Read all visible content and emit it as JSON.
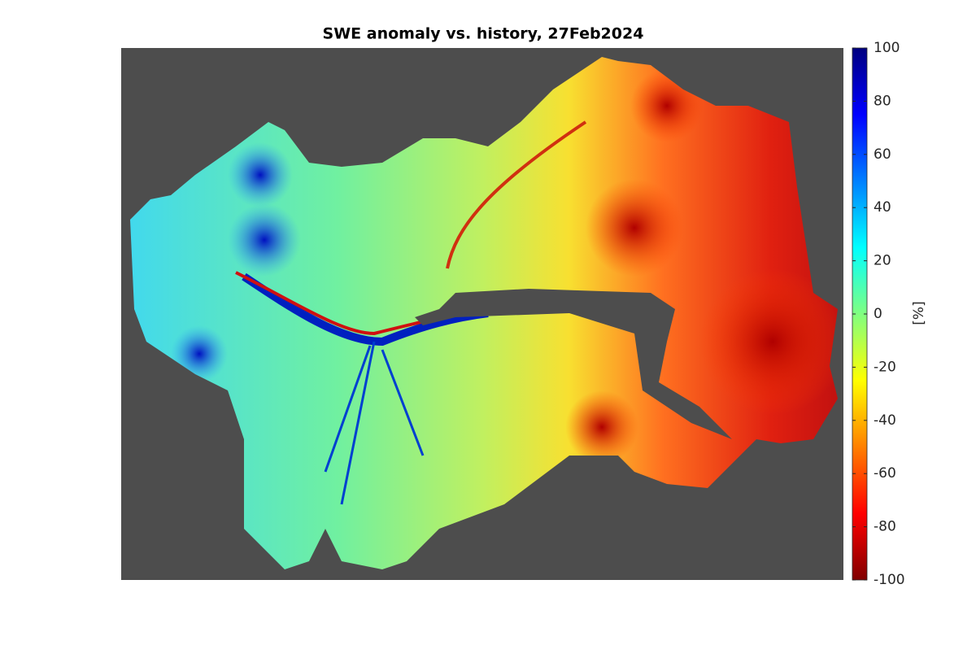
{
  "title": "SWE anomaly vs. history, 27Feb2024",
  "colorbar": {
    "label": "[%]",
    "colormap": "jet",
    "lim": [
      -100,
      100
    ],
    "ticks": [
      100,
      80,
      60,
      40,
      20,
      0,
      -20,
      -40,
      -60,
      -80,
      -100
    ]
  }
}
